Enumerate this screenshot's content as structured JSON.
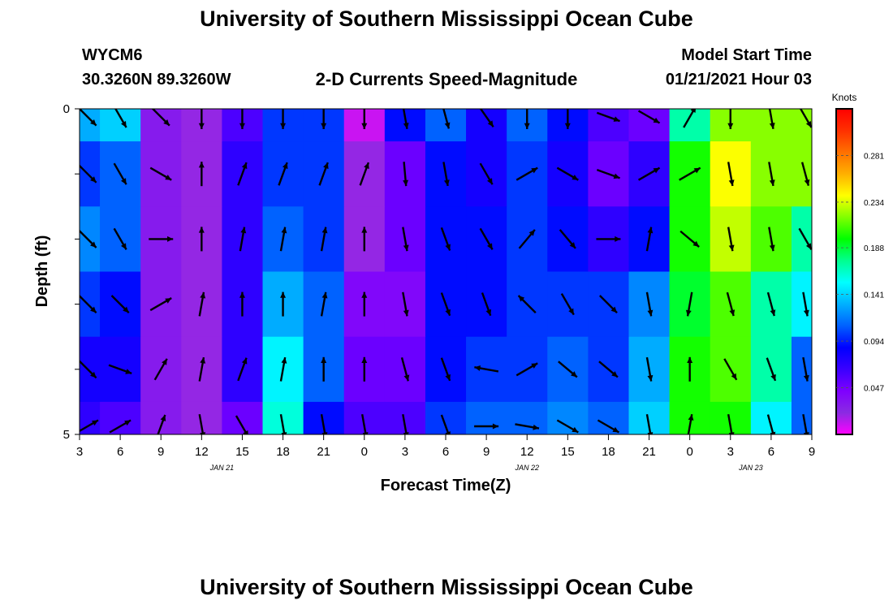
{
  "page": {
    "title_top": "University of Southern Mississippi Ocean Cube",
    "title_bottom": "University of Southern Mississippi Ocean Cube",
    "station_id": "WYCM6",
    "station_coords": "30.3260N 89.3260W",
    "plot_title": "2-D Currents Speed-Magnitude",
    "model_start_label": "Model Start Time",
    "model_start_value": "01/21/2021 Hour 03"
  },
  "colors": {
    "colormap": [
      "#ff00ff",
      "#8a2be2",
      "#7f00ff",
      "#3a00ff",
      "#0000ff",
      "#0060ff",
      "#00b0ff",
      "#00ffff",
      "#00ff90",
      "#00ff00",
      "#80ff00",
      "#ffff00",
      "#ffb000",
      "#ff7000",
      "#ff3000",
      "#ff0000"
    ],
    "arrow": "#000000",
    "frame": "#000000"
  },
  "chart_data": {
    "type": "heatmap",
    "subtype": "time-depth current speed with direction vectors",
    "xlabel": "Forecast Time(Z)",
    "ylabel": "Depth (ft)",
    "x_tick_labels": [
      "3",
      "6",
      "9",
      "12",
      "15",
      "18",
      "21",
      "0",
      "3",
      "6",
      "9",
      "12",
      "15",
      "18",
      "21",
      "0",
      "3",
      "6",
      "9"
    ],
    "x_tick_hours": [
      3,
      6,
      9,
      12,
      15,
      18,
      21,
      24,
      27,
      30,
      33,
      36,
      39,
      42,
      45,
      48,
      51,
      54,
      57
    ],
    "xlim_hours": [
      3,
      57
    ],
    "date_labels": [
      {
        "label": "JAN 21",
        "hour": 13.5
      },
      {
        "label": "JAN 22",
        "hour": 36
      },
      {
        "label": "JAN 23",
        "hour": 52.5
      }
    ],
    "y_tick_labels": [
      "0",
      "5"
    ],
    "ylim_ft": [
      0,
      5
    ],
    "depth_levels_ft": [
      0.0,
      1.0,
      2.0,
      3.0,
      4.0,
      5.0
    ],
    "colorbar": {
      "label": "Knots",
      "range": [
        0.0,
        0.328
      ],
      "tick_labels": [
        "0.047",
        "0.094",
        "0.141",
        "0.188",
        "0.234",
        "0.281"
      ],
      "tick_values": [
        0.047,
        0.094,
        0.141,
        0.188,
        0.234,
        0.281
      ]
    },
    "time_hours": [
      3,
      6,
      9,
      12,
      15,
      18,
      21,
      24,
      27,
      30,
      33,
      36,
      39,
      42,
      45,
      48,
      51,
      54,
      57
    ],
    "speed_knots": [
      [
        0.13,
        0.14,
        0.03,
        0.02,
        0.06,
        0.1,
        0.1,
        0.01,
        0.09,
        0.11,
        0.08,
        0.11,
        0.09,
        0.06,
        0.05,
        0.17,
        0.22,
        0.22,
        0.22
      ],
      [
        0.1,
        0.11,
        0.03,
        0.02,
        0.07,
        0.1,
        0.1,
        0.02,
        0.05,
        0.09,
        0.08,
        0.1,
        0.08,
        0.05,
        0.07,
        0.2,
        0.24,
        0.22,
        0.22
      ],
      [
        0.12,
        0.11,
        0.03,
        0.02,
        0.07,
        0.11,
        0.1,
        0.02,
        0.05,
        0.09,
        0.09,
        0.1,
        0.09,
        0.07,
        0.09,
        0.2,
        0.23,
        0.21,
        0.17
      ],
      [
        0.1,
        0.09,
        0.03,
        0.02,
        0.07,
        0.13,
        0.11,
        0.04,
        0.04,
        0.09,
        0.09,
        0.1,
        0.1,
        0.1,
        0.12,
        0.19,
        0.21,
        0.17,
        0.15
      ],
      [
        0.08,
        0.08,
        0.03,
        0.02,
        0.07,
        0.15,
        0.11,
        0.05,
        0.05,
        0.09,
        0.1,
        0.1,
        0.11,
        0.1,
        0.13,
        0.2,
        0.21,
        0.17,
        0.11
      ],
      [
        0.07,
        0.06,
        0.03,
        0.02,
        0.05,
        0.16,
        0.09,
        0.06,
        0.06,
        0.1,
        0.11,
        0.11,
        0.12,
        0.11,
        0.14,
        0.2,
        0.2,
        0.15,
        0.11
      ]
    ],
    "direction_deg": [
      [
        135,
        150,
        135,
        180,
        180,
        180,
        180,
        180,
        170,
        165,
        145,
        180,
        180,
        110,
        120,
        30,
        180,
        170,
        150
      ],
      [
        135,
        150,
        120,
        0,
        20,
        20,
        20,
        20,
        175,
        170,
        150,
        60,
        120,
        110,
        60,
        60,
        170,
        170,
        165
      ],
      [
        135,
        150,
        90,
        0,
        10,
        10,
        10,
        0,
        170,
        160,
        150,
        40,
        140,
        90,
        10,
        130,
        170,
        170,
        150
      ],
      [
        135,
        135,
        60,
        10,
        0,
        0,
        10,
        0,
        170,
        160,
        160,
        315,
        150,
        135,
        170,
        190,
        165,
        165,
        170
      ],
      [
        135,
        110,
        30,
        10,
        20,
        10,
        0,
        0,
        165,
        160,
        280,
        60,
        130,
        130,
        170,
        0,
        150,
        160,
        170
      ],
      [
        60,
        60,
        20,
        170,
        150,
        170,
        170,
        170,
        170,
        160,
        90,
        100,
        120,
        120,
        170,
        10,
        170,
        165,
        170
      ]
    ]
  }
}
